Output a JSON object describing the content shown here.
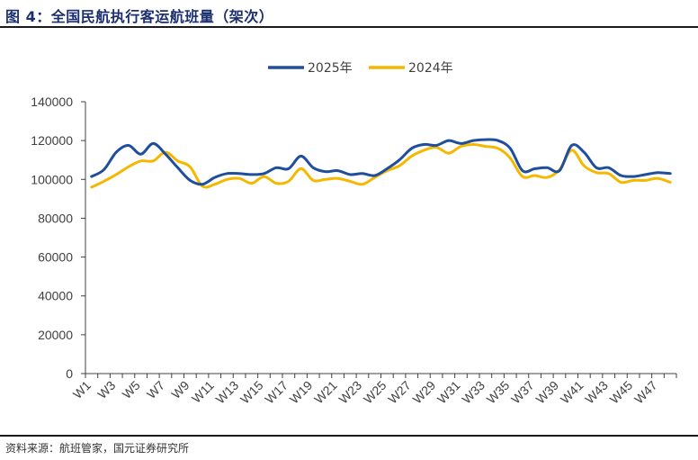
{
  "figure": {
    "title": "图 4：全国民航执行客运航班量（架次）",
    "source": "资料来源：航班管家，国元证券研究所"
  },
  "colors": {
    "series_2025": "#1f4e9c",
    "series_2024": "#f5b800",
    "axis": "#404040",
    "title": "#1b2f6e"
  },
  "chart_data": {
    "type": "line",
    "x": [
      "W1",
      "W2",
      "W3",
      "W4",
      "W5",
      "W6",
      "W7",
      "W8",
      "W9",
      "W10",
      "W11",
      "W12",
      "W13",
      "W14",
      "W15",
      "W16",
      "W17",
      "W18",
      "W19",
      "W20",
      "W21",
      "W22",
      "W23",
      "W24",
      "W25",
      "W26",
      "W27",
      "W28",
      "W29",
      "W30",
      "W31",
      "W32",
      "W33",
      "W34",
      "W35",
      "W36",
      "W37",
      "W38",
      "W39",
      "W40",
      "W41",
      "W42",
      "W43",
      "W44",
      "W45",
      "W46",
      "W47",
      "W48"
    ],
    "x_tick_labels": [
      "W1",
      "W3",
      "W5",
      "W7",
      "W9",
      "W11",
      "W13",
      "W15",
      "W17",
      "W19",
      "W21",
      "W23",
      "W25",
      "W27",
      "W29",
      "W31",
      "W33",
      "W35",
      "W37",
      "W39",
      "W41",
      "W43",
      "W45",
      "W47"
    ],
    "y_ticks": [
      0,
      20000,
      40000,
      60000,
      80000,
      100000,
      120000,
      140000
    ],
    "ylim": [
      0,
      140000
    ],
    "grid": false,
    "legend_position": "top-center",
    "series": [
      {
        "name": "2025年",
        "color": "#1f4e9c",
        "values": [
          101500,
          105000,
          114000,
          117500,
          113000,
          118500,
          113000,
          106000,
          99500,
          97500,
          101000,
          103000,
          103000,
          102500,
          103000,
          106000,
          105500,
          112000,
          106000,
          104000,
          104500,
          102500,
          103000,
          102000,
          105500,
          110000,
          116000,
          118000,
          117500,
          120000,
          118500,
          120000,
          120500,
          120000,
          116000,
          104500,
          105500,
          106000,
          104500,
          117500,
          114000,
          106000,
          106000,
          102000,
          101500,
          102500,
          103500,
          103000
        ]
      },
      {
        "name": "2024年",
        "color": "#f5b800",
        "values": [
          96000,
          99000,
          102500,
          106500,
          109500,
          109500,
          114000,
          109500,
          106500,
          96500,
          97500,
          100000,
          100500,
          98000,
          101500,
          98000,
          99000,
          105500,
          99500,
          100000,
          100500,
          99000,
          97500,
          101000,
          104500,
          107000,
          112000,
          115000,
          116500,
          113500,
          117000,
          118000,
          117000,
          116000,
          111000,
          101500,
          102000,
          101000,
          105000,
          115000,
          107000,
          103500,
          103000,
          98500,
          99500,
          99500,
          100500,
          98500
        ]
      }
    ]
  }
}
